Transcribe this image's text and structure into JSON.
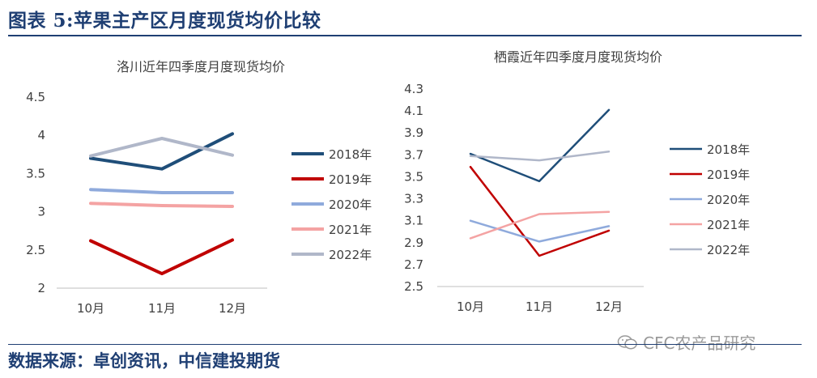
{
  "header": {
    "title": "图表 5:苹果主产区月度现货均价比较"
  },
  "footer": {
    "source": "数据来源：卓创资讯，中信建投期货"
  },
  "watermark": {
    "text": "CFC农产品研究"
  },
  "colors": {
    "series": [
      "#1f4e79",
      "#c00000",
      "#8faadc",
      "#f4a3a3",
      "#b0b7c9"
    ],
    "header": "#1f3f73"
  },
  "chart_data": [
    {
      "type": "line",
      "title": "洛川近年四季度月度现货均价",
      "categories": [
        "10月",
        "11月",
        "12月"
      ],
      "ylim": [
        2,
        4.5
      ],
      "yticks": [
        "2",
        "2.5",
        "3",
        "3.5",
        "4",
        "4.5"
      ],
      "ytick_values": [
        2,
        2.5,
        3,
        3.5,
        4,
        4.5
      ],
      "grid": false,
      "legend": "right",
      "series": [
        {
          "name": "2018年",
          "values": [
            3.7,
            3.56,
            4.02
          ]
        },
        {
          "name": "2019年",
          "values": [
            2.62,
            2.19,
            2.63
          ]
        },
        {
          "name": "2020年",
          "values": [
            3.29,
            3.25,
            3.25
          ]
        },
        {
          "name": "2021年",
          "values": [
            3.11,
            3.08,
            3.07
          ]
        },
        {
          "name": "2022年",
          "values": [
            3.73,
            3.96,
            3.74
          ]
        }
      ]
    },
    {
      "type": "line",
      "title": "栖霞近年四季度月度现货均价",
      "categories": [
        "10月",
        "11月",
        "12月"
      ],
      "ylim": [
        2.5,
        4.3
      ],
      "yticks": [
        "2.5",
        "2.7",
        "2.9",
        "3.1",
        "3.3",
        "3.5",
        "3.7",
        "3.9",
        "4.1",
        "4.3"
      ],
      "ytick_values": [
        2.5,
        2.7,
        2.9,
        3.1,
        3.3,
        3.5,
        3.7,
        3.9,
        4.1,
        4.3
      ],
      "grid": false,
      "legend": "right",
      "series": [
        {
          "name": "2018年",
          "values": [
            3.71,
            3.46,
            4.11
          ]
        },
        {
          "name": "2019年",
          "values": [
            3.59,
            2.78,
            3.01
          ]
        },
        {
          "name": "2020年",
          "values": [
            3.1,
            2.91,
            3.05
          ]
        },
        {
          "name": "2021年",
          "values": [
            2.94,
            3.16,
            3.18
          ]
        },
        {
          "name": "2022年",
          "values": [
            3.69,
            3.65,
            3.73
          ]
        }
      ]
    }
  ]
}
